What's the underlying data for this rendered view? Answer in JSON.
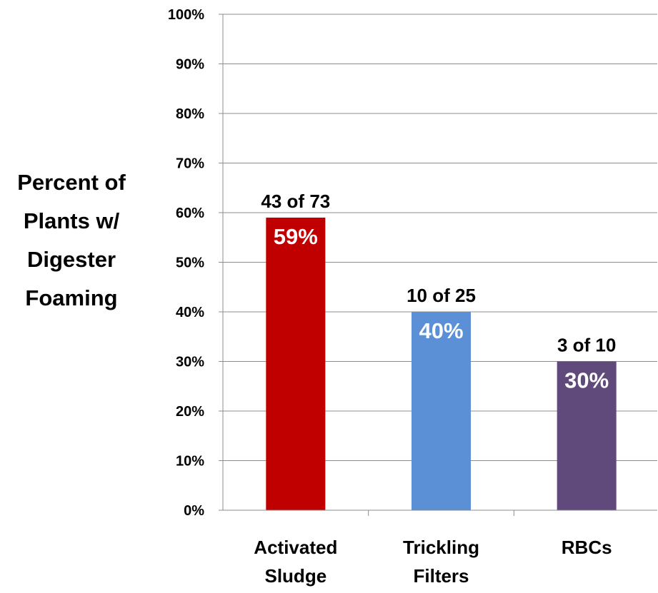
{
  "chart_data": {
    "type": "bar",
    "categories": [
      [
        "Activated",
        "Sludge"
      ],
      [
        "Trickling",
        "Filters"
      ],
      [
        "RBCs"
      ]
    ],
    "values": [
      59,
      40,
      30
    ],
    "value_labels": [
      "59%",
      "40%",
      "30%"
    ],
    "count_labels": [
      "43 of 73",
      "10 of 25",
      "3 of 10"
    ],
    "colors": [
      "#c00000",
      "#5b8fd6",
      "#604a7b"
    ],
    "ylabel": [
      "Percent of",
      "Plants w/",
      "Digester",
      "Foaming"
    ],
    "ylim": [
      0,
      100
    ],
    "yticks": [
      0,
      10,
      20,
      30,
      40,
      50,
      60,
      70,
      80,
      90,
      100
    ],
    "ytick_labels": [
      "0%",
      "10%",
      "20%",
      "30%",
      "40%",
      "50%",
      "60%",
      "70%",
      "80%",
      "90%",
      "100%"
    ],
    "grid": true,
    "legend": "none"
  }
}
